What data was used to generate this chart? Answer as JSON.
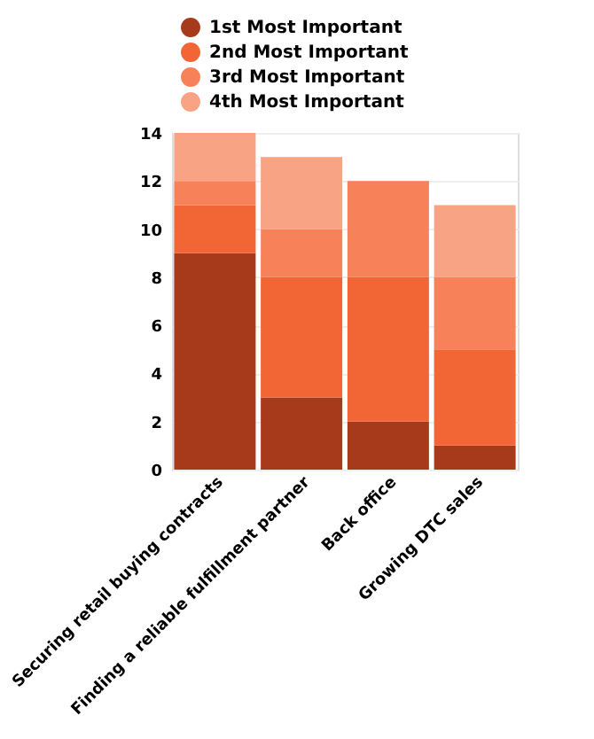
{
  "chart_data": {
    "type": "bar",
    "stacked": true,
    "categories": [
      "Securing retail buying contracts",
      "Finding a reliable fulfillment partner",
      "Back office",
      "Growing DTC sales"
    ],
    "series": [
      {
        "name": "1st Most Important",
        "color": "#a83a1c",
        "values": [
          9,
          3,
          2,
          1
        ]
      },
      {
        "name": "2nd Most Important",
        "color": "#f26535",
        "values": [
          2,
          5,
          6,
          4
        ]
      },
      {
        "name": "3rd Most Important",
        "color": "#f7825a",
        "values": [
          1,
          2,
          4,
          3
        ]
      },
      {
        "name": "4th Most Important",
        "color": "#f9a385",
        "values": [
          2,
          3,
          0,
          3
        ]
      }
    ],
    "ylim": [
      0,
      14
    ],
    "yticks": [
      0,
      2,
      4,
      6,
      8,
      10,
      12,
      14
    ],
    "grid": "y",
    "legend": "top"
  }
}
